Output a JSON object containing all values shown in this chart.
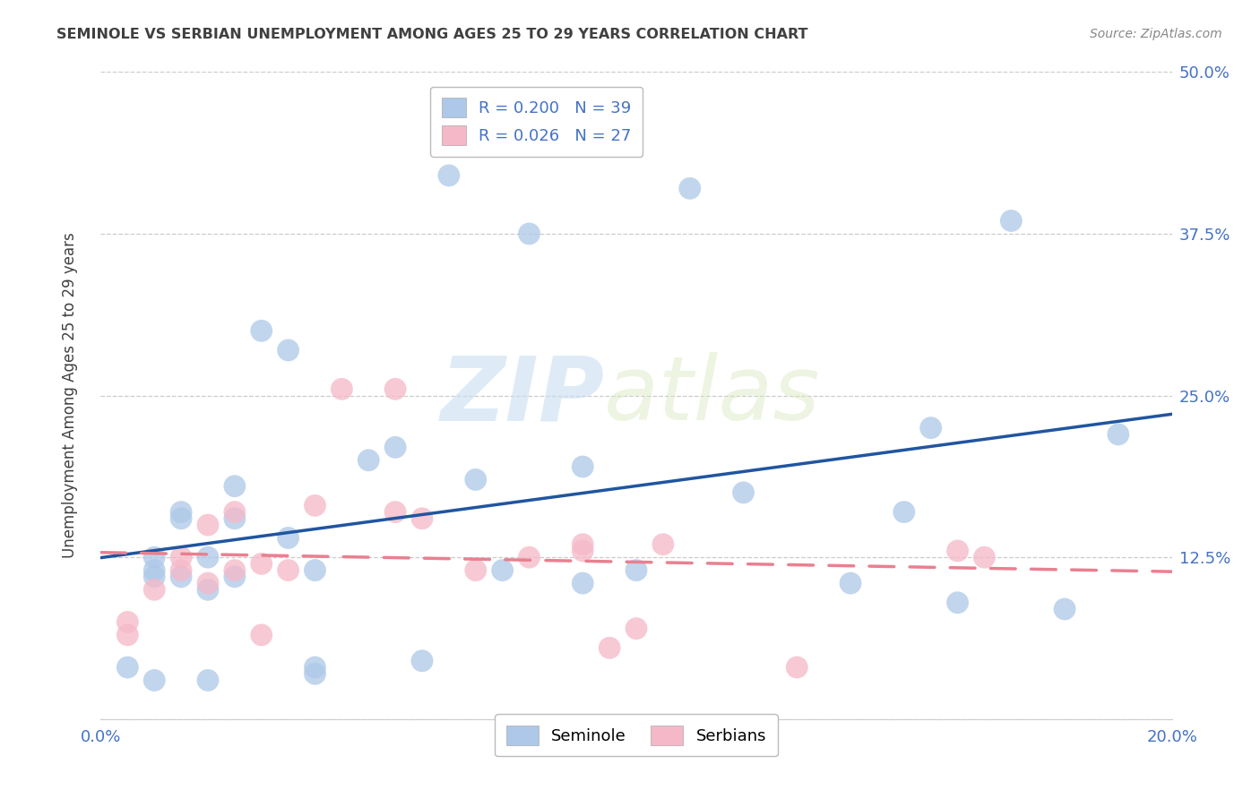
{
  "title": "SEMINOLE VS SERBIAN UNEMPLOYMENT AMONG AGES 25 TO 29 YEARS CORRELATION CHART",
  "source": "Source: ZipAtlas.com",
  "ylabel": "Unemployment Among Ages 25 to 29 years",
  "xlim": [
    0.0,
    0.2
  ],
  "ylim": [
    0.0,
    0.5
  ],
  "xticks": [
    0.0,
    0.05,
    0.1,
    0.15,
    0.2
  ],
  "xtick_labels": [
    "0.0%",
    "",
    "",
    "",
    "20.0%"
  ],
  "yticks": [
    0.0,
    0.125,
    0.25,
    0.375,
    0.5
  ],
  "ytick_labels_left": [
    "",
    "",
    "",
    "",
    ""
  ],
  "ytick_labels_right": [
    "",
    "12.5%",
    "25.0%",
    "37.5%",
    "50.0%"
  ],
  "seminole_R": 0.2,
  "seminole_N": 39,
  "serbian_R": 0.026,
  "serbian_N": 27,
  "seminole_color": "#adc8e8",
  "serbian_color": "#f5b8c8",
  "seminole_line_color": "#2055a0",
  "serbian_line_color": "#e88090",
  "seminole_x": [
    0.005,
    0.01,
    0.01,
    0.01,
    0.01,
    0.015,
    0.015,
    0.015,
    0.02,
    0.02,
    0.02,
    0.025,
    0.025,
    0.025,
    0.03,
    0.035,
    0.035,
    0.04,
    0.04,
    0.04,
    0.05,
    0.055,
    0.06,
    0.065,
    0.07,
    0.075,
    0.08,
    0.09,
    0.09,
    0.1,
    0.11,
    0.12,
    0.14,
    0.15,
    0.155,
    0.16,
    0.17,
    0.18,
    0.19
  ],
  "seminole_y": [
    0.04,
    0.11,
    0.115,
    0.125,
    0.03,
    0.11,
    0.155,
    0.16,
    0.1,
    0.125,
    0.03,
    0.11,
    0.155,
    0.18,
    0.3,
    0.285,
    0.14,
    0.035,
    0.04,
    0.115,
    0.2,
    0.21,
    0.045,
    0.42,
    0.185,
    0.115,
    0.375,
    0.195,
    0.105,
    0.115,
    0.41,
    0.175,
    0.105,
    0.16,
    0.225,
    0.09,
    0.385,
    0.085,
    0.22
  ],
  "serbian_x": [
    0.005,
    0.005,
    0.01,
    0.015,
    0.015,
    0.02,
    0.02,
    0.025,
    0.025,
    0.03,
    0.03,
    0.035,
    0.04,
    0.045,
    0.055,
    0.055,
    0.06,
    0.07,
    0.08,
    0.09,
    0.095,
    0.1,
    0.105,
    0.13,
    0.16,
    0.165,
    0.09
  ],
  "serbian_y": [
    0.065,
    0.075,
    0.1,
    0.115,
    0.125,
    0.105,
    0.15,
    0.115,
    0.16,
    0.12,
    0.065,
    0.115,
    0.165,
    0.255,
    0.255,
    0.16,
    0.155,
    0.115,
    0.125,
    0.135,
    0.055,
    0.07,
    0.135,
    0.04,
    0.13,
    0.125,
    0.13
  ],
  "watermark_zip": "ZIP",
  "watermark_atlas": "atlas",
  "background_color": "#ffffff",
  "grid_color": "#cccccc",
  "tick_color": "#4472c4",
  "title_color": "#404040",
  "source_color": "#888888",
  "ylabel_color": "#404040"
}
